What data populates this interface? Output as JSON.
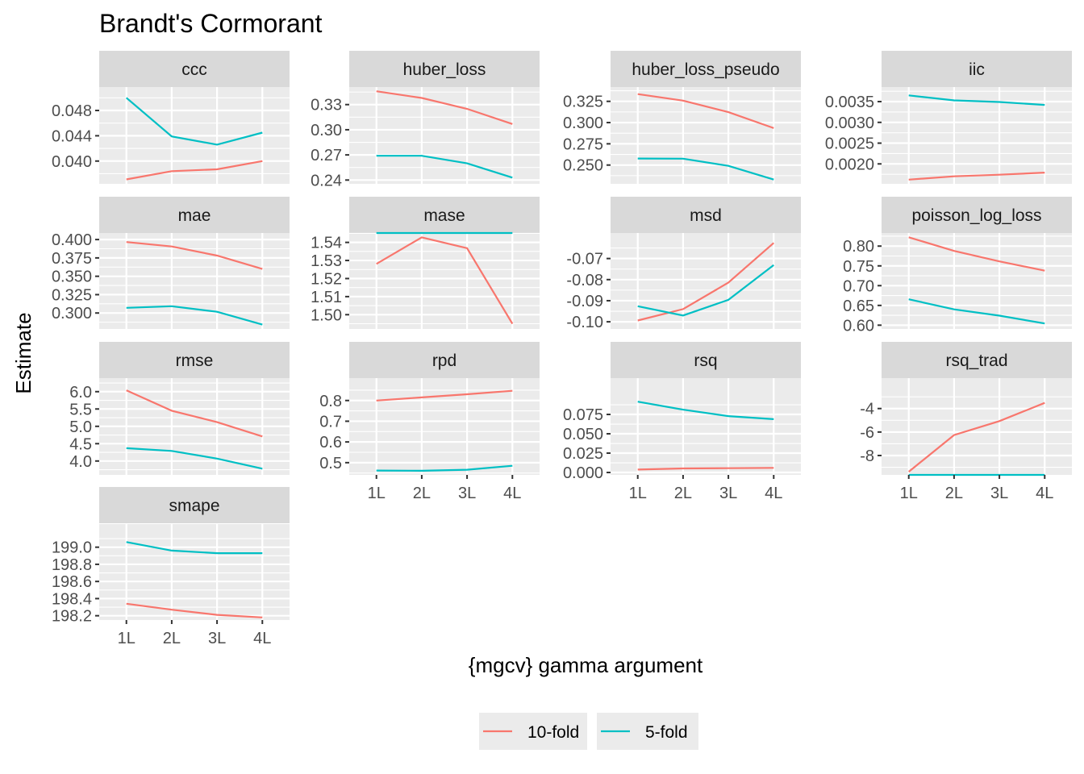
{
  "title": "Brandt's Cormorant",
  "xlabel": "{mgcv} gamma argument",
  "ylabel": "Estimate",
  "categories": [
    "1L",
    "2L",
    "3L",
    "4L"
  ],
  "legend": {
    "placement": "bottom",
    "entries": [
      {
        "name": "10-fold",
        "color": "#F8766D"
      },
      {
        "name": "5-fold",
        "color": "#00BFC4"
      }
    ]
  },
  "chart_data": {
    "type": "line",
    "grid": true,
    "facets": [
      {
        "label": "ccc",
        "ylim": [
          0.0364,
          0.0517
        ],
        "ticks": [
          0.04,
          0.044,
          0.048
        ],
        "tick_labels": [
          "0.040",
          "0.044",
          "0.048"
        ],
        "series": [
          {
            "name": "10-fold",
            "values": [
              0.0371,
              0.0384,
              0.0387,
              0.04
            ]
          },
          {
            "name": "5-fold",
            "values": [
              0.05,
              0.0439,
              0.0426,
              0.0445
            ]
          }
        ]
      },
      {
        "label": "huber_loss",
        "ylim": [
          0.2355,
          0.3509
        ],
        "ticks": [
          0.24,
          0.27,
          0.3,
          0.33
        ],
        "tick_labels": [
          "0.24",
          "0.27",
          "0.30",
          "0.33"
        ],
        "series": [
          {
            "name": "10-fold",
            "values": [
              0.3459,
              0.3379,
              0.3249,
              0.3069
            ]
          },
          {
            "name": "5-fold",
            "values": [
              0.269,
              0.269,
              0.2599,
              0.2429
            ]
          }
        ]
      },
      {
        "label": "huber_loss_pseudo",
        "ylim": [
          0.2279,
          0.3418
        ],
        "ticks": [
          0.25,
          0.275,
          0.3,
          0.325
        ],
        "tick_labels": [
          "0.250",
          "0.275",
          "0.300",
          "0.325"
        ],
        "series": [
          {
            "name": "10-fold",
            "values": [
              0.3335,
              0.3259,
              0.3123,
              0.2935
            ]
          },
          {
            "name": "5-fold",
            "values": [
              0.2577,
              0.2575,
              0.2491,
              0.2329
            ]
          }
        ]
      },
      {
        "label": "iic",
        "ylim": [
          0.00152,
          0.00385
        ],
        "ticks": [
          0.002,
          0.0025,
          0.003,
          0.0035
        ],
        "tick_labels": [
          "0.0020",
          "0.0025",
          "0.0030",
          "0.0035"
        ],
        "series": [
          {
            "name": "10-fold",
            "values": [
              0.00162,
              0.0017,
              0.00174,
              0.00179
            ]
          },
          {
            "name": "5-fold",
            "values": [
              0.00365,
              0.00353,
              0.00349,
              0.00342
            ]
          }
        ]
      },
      {
        "label": "mae",
        "ylim": [
          0.2783,
          0.4089
        ],
        "ticks": [
          0.3,
          0.325,
          0.35,
          0.375,
          0.4
        ],
        "tick_labels": [
          "0.300",
          "0.325",
          "0.350",
          "0.375",
          "0.400"
        ],
        "series": [
          {
            "name": "10-fold",
            "values": [
              0.3966,
              0.3906,
              0.3782,
              0.36
            ]
          },
          {
            "name": "5-fold",
            "values": [
              0.307,
              0.3093,
              0.3017,
              0.2842
            ]
          }
        ]
      },
      {
        "label": "mase",
        "ylim": [
          1.4921,
          1.5452
        ],
        "ticks": [
          1.5,
          1.51,
          1.52,
          1.53,
          1.54
        ],
        "tick_labels": [
          "1.50",
          "1.51",
          "1.52",
          "1.53",
          "1.54"
        ],
        "series": [
          {
            "name": "10-fold",
            "values": [
              1.5281,
              1.5428,
              1.5368,
              1.495
            ]
          },
          {
            "name": "5-fold",
            "values": [
              1.5452,
              1.5452,
              1.5452,
              1.5452
            ]
          }
        ]
      },
      {
        "label": "msd",
        "ylim": [
          -0.1034,
          -0.0579
        ],
        "ticks": [
          -0.1,
          -0.09,
          -0.08,
          -0.07
        ],
        "tick_labels": [
          "-0.10",
          "-0.09",
          "-0.08",
          "-0.07"
        ],
        "series": [
          {
            "name": "10-fold",
            "values": [
              -0.0994,
              -0.094,
              -0.0814,
              -0.0626
            ]
          },
          {
            "name": "5-fold",
            "values": [
              -0.0926,
              -0.097,
              -0.0896,
              -0.0731
            ]
          }
        ]
      },
      {
        "label": "poisson_log_loss",
        "ylim": [
          0.5905,
          0.8331
        ],
        "ticks": [
          0.6,
          0.65,
          0.7,
          0.75,
          0.8
        ],
        "tick_labels": [
          "0.60",
          "0.65",
          "0.70",
          "0.75",
          "0.80"
        ],
        "series": [
          {
            "name": "10-fold",
            "values": [
              0.8222,
              0.7878,
              0.7613,
              0.7378
            ]
          },
          {
            "name": "5-fold",
            "values": [
              0.6656,
              0.64,
              0.6241,
              0.6044
            ]
          }
        ]
      },
      {
        "label": "rmse",
        "ylim": [
          3.6,
          6.39
        ],
        "ticks": [
          4.0,
          4.5,
          5.0,
          5.5,
          6.0
        ],
        "tick_labels": [
          "4.0",
          "4.5",
          "5.0",
          "5.5",
          "6.0"
        ],
        "series": [
          {
            "name": "10-fold",
            "values": [
              6.04,
              5.45,
              5.12,
              4.71
            ]
          },
          {
            "name": "5-fold",
            "values": [
              4.37,
              4.29,
              4.07,
              3.78
            ]
          }
        ]
      },
      {
        "label": "rpd",
        "ylim": [
          0.441,
          0.908
        ],
        "ticks": [
          0.5,
          0.6,
          0.7,
          0.8
        ],
        "tick_labels": [
          "0.5",
          "0.6",
          "0.7",
          "0.8"
        ],
        "series": [
          {
            "name": "10-fold",
            "values": [
              0.8,
              0.815,
              0.83,
              0.847
            ]
          },
          {
            "name": "5-fold",
            "values": [
              0.462,
              0.461,
              0.466,
              0.485
            ]
          }
        ]
      },
      {
        "label": "rsq",
        "ylim": [
          -0.0031,
          0.1219
        ],
        "ticks": [
          0.0,
          0.025,
          0.05,
          0.075
        ],
        "tick_labels": [
          "0.000",
          "0.025",
          "0.050",
          "0.075"
        ],
        "series": [
          {
            "name": "10-fold",
            "values": [
              0.0038,
              0.0052,
              0.0055,
              0.006
            ]
          },
          {
            "name": "5-fold",
            "values": [
              0.0915,
              0.0812,
              0.0728,
              0.0689
            ]
          }
        ]
      },
      {
        "label": "rsq_trad",
        "ylim": [
          -9.65,
          -1.41
        ],
        "ticks": [
          -8,
          -6,
          -4
        ],
        "tick_labels": [
          "-8",
          "-6",
          "-4"
        ],
        "series": [
          {
            "name": "10-fold",
            "values": [
              -9.38,
              -6.26,
              -5.07,
              -3.52
            ]
          },
          {
            "name": "5-fold",
            "values": [
              -9.65,
              -9.65,
              -9.65,
              -9.65
            ]
          }
        ]
      },
      {
        "label": "smape",
        "ylim": [
          198.15,
          199.27
        ],
        "ticks": [
          198.2,
          198.4,
          198.6,
          198.8,
          199.0
        ],
        "tick_labels": [
          "198.2",
          "198.4",
          "198.6",
          "198.8",
          "199.0"
        ],
        "series": [
          {
            "name": "10-fold",
            "values": [
              198.34,
              198.27,
              198.21,
              198.18
            ]
          },
          {
            "name": "5-fold",
            "values": [
              199.06,
              198.96,
              198.93,
              198.93
            ]
          }
        ]
      }
    ]
  }
}
